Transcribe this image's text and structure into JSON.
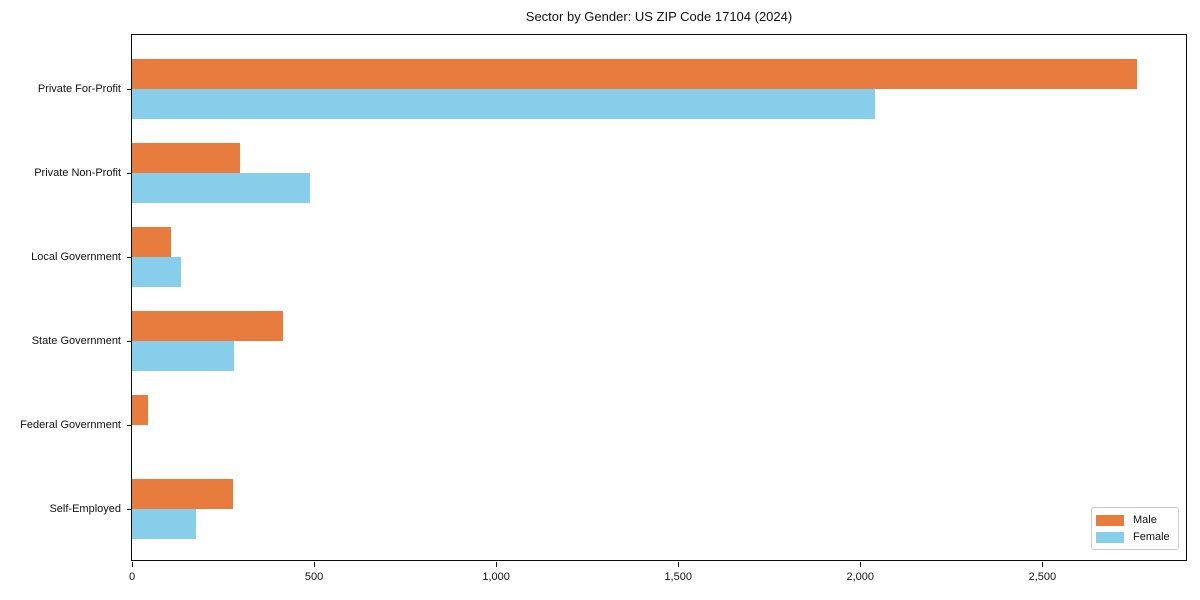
{
  "title": "Sector by Gender: US ZIP Code 17104 (2024)",
  "chart_data": {
    "type": "bar",
    "orientation": "horizontal",
    "title": "Sector by Gender: US ZIP Code 17104 (2024)",
    "categories": [
      "Private For-Profit",
      "Private Non-Profit",
      "Local Government",
      "State Government",
      "Federal Government",
      "Self-Employed"
    ],
    "series": [
      {
        "name": "Male",
        "color": "#E87C3E",
        "values": [
          2760,
          297,
          107,
          415,
          44,
          277
        ]
      },
      {
        "name": "Female",
        "color": "#87CEEB",
        "values": [
          2040,
          489,
          135,
          280,
          0,
          176
        ]
      }
    ],
    "xlabel": "",
    "ylabel": "",
    "xlim": [
      0,
      2900
    ],
    "x_ticks": [
      0,
      500,
      1000,
      1500,
      2000,
      2500
    ],
    "x_tick_labels": [
      "0",
      "500",
      "1,000",
      "1,500",
      "2,000",
      "2,500"
    ],
    "grid": false,
    "legend_position": "lower right",
    "background_color": "#ffffff",
    "axis_color": "#0b0b0b"
  }
}
